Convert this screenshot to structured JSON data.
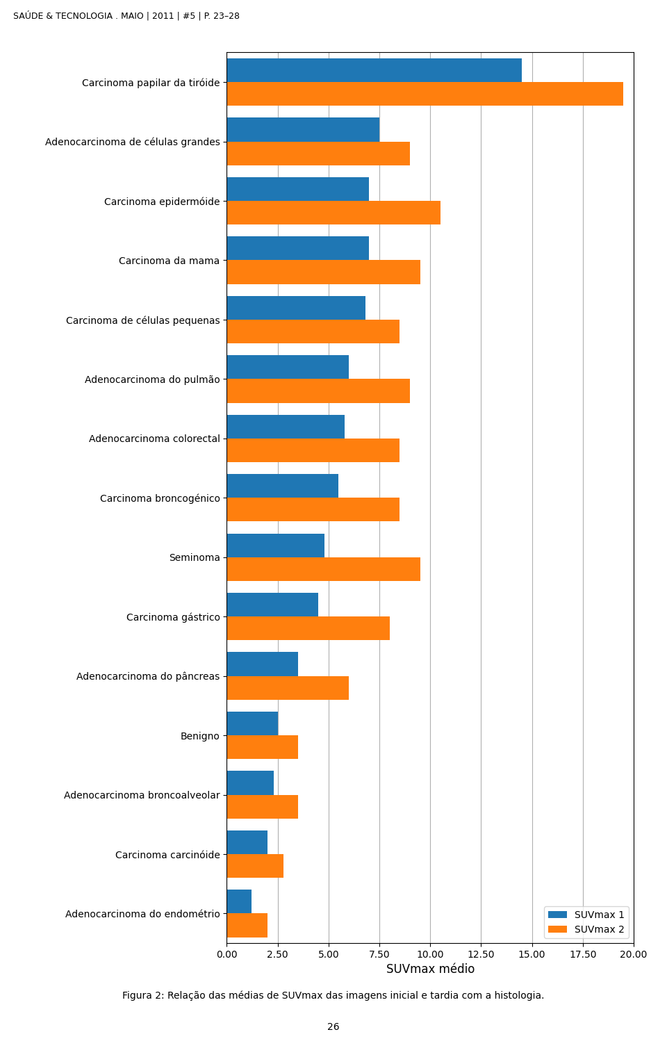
{
  "chart_data": {
    "type": "bar",
    "orientation": "horizontal",
    "categories": [
      "Carcinoma papilar da tiróide",
      "Adenocarcinoma de células grandes",
      "Carcinoma epidermóide",
      "Carcinoma da mama",
      "Carcinoma de células pequenas",
      "Adenocarcinoma do pulmão",
      "Adenocarcinoma colorectal",
      "Carcinoma broncogénico",
      "Seminoma",
      "Carcinoma gástrico",
      "Adenocarcinoma do pâncreas",
      "Benigno",
      "Adenocarcinoma broncoalveolar",
      "Carcinoma carcinóide",
      "Adenocarcinoma do endométrio"
    ],
    "series": [
      {
        "name": "SUVmax 1",
        "values": [
          14.5,
          7.5,
          7.0,
          7.0,
          6.8,
          6.0,
          5.8,
          5.5,
          4.8,
          4.5,
          3.5,
          2.5,
          2.3,
          2.0,
          1.2
        ]
      },
      {
        "name": "SUVmax 2",
        "values": [
          19.5,
          9.0,
          10.5,
          9.5,
          8.5,
          9.0,
          8.5,
          8.5,
          9.5,
          8.0,
          6.0,
          3.5,
          3.5,
          2.8,
          2.0
        ]
      }
    ],
    "x_label": "SUVmax médio",
    "xlim": [
      0,
      20
    ],
    "xticks": [
      {
        "value": 0.0,
        "label": "0.00"
      },
      {
        "value": 2.5,
        "label": "2.50"
      },
      {
        "value": 5.0,
        "label": "5.00"
      },
      {
        "value": 7.5,
        "label": "7.50"
      },
      {
        "value": 10.0,
        "label": "10.00"
      },
      {
        "value": 12.5,
        "label": "12.50"
      },
      {
        "value": 15.0,
        "label": "15.00"
      },
      {
        "value": 17.5,
        "label": "17.50"
      },
      {
        "value": 20.0,
        "label": "20.00"
      }
    ],
    "grid": true,
    "legend": "lower right",
    "annotations": [
      "SAÚDE & TECNOLOGIA . MAIO | 2011 | #5 | P. 23–28",
      "Figura 2: Relação das médias de SUVmax das imagens inicial e tardia com a histologia.",
      "26"
    ]
  }
}
